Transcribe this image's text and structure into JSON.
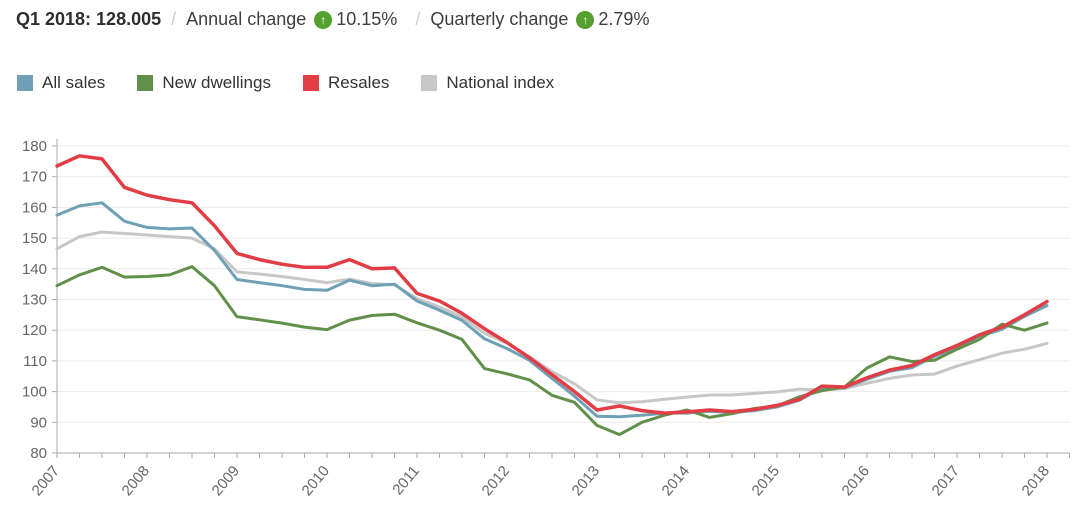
{
  "header": {
    "title": "Q1 2018: 128.005",
    "separator": "/",
    "annual_label": "Annual change",
    "annual_value": "10.15%",
    "quarterly_label": "Quarterly change",
    "quarterly_value": "2.79%"
  },
  "icons": {
    "up_arrow": "↑"
  },
  "colors": {
    "accent_green": "#55a12f",
    "grid": "#ebebeb",
    "axis_line": "#aaaaaa",
    "axis_text": "#666666"
  },
  "legend": {
    "items": [
      {
        "label": "All sales",
        "color": "#6fa0b5"
      },
      {
        "label": "New dwellings",
        "color": "#61904b"
      },
      {
        "label": "Resales",
        "color": "#e23d45"
      },
      {
        "label": "National index",
        "color": "#c7c7c7"
      }
    ]
  },
  "chart_data": {
    "type": "line",
    "title": "Q1 2018: 128.005",
    "xlabel": "",
    "ylabel": "",
    "ylim": [
      80,
      180
    ],
    "y_ticks": [
      180,
      170,
      160,
      150,
      140,
      130,
      120,
      110,
      100,
      90,
      80
    ],
    "x_years": [
      "2007",
      "2008",
      "2009",
      "2010",
      "2011",
      "2012",
      "2013",
      "2014",
      "2015",
      "2016",
      "2017",
      "2018"
    ],
    "points_per_year": 4,
    "legend_position": "top",
    "grid": true,
    "series": [
      {
        "name": "All sales",
        "color": "#6fa0b5",
        "values": [
          157.5,
          160.5,
          161.5,
          155.5,
          153.5,
          153,
          153.3,
          146,
          136.5,
          135.5,
          134.5,
          133.3,
          133,
          136.3,
          134.5,
          135,
          129.5,
          126.5,
          123.2,
          117.2,
          114,
          110.2,
          104.3,
          98.5,
          92,
          91.8,
          92.3,
          93,
          93,
          93.6,
          93.2,
          93.8,
          95,
          97.2,
          101.3,
          101.2,
          104,
          106.6,
          107.8,
          111.5,
          114.5,
          118,
          120.3,
          124.5,
          128
        ]
      },
      {
        "name": "New dwellings",
        "color": "#61904b",
        "values": [
          134.5,
          138,
          140.5,
          137.3,
          137.5,
          138,
          140.7,
          134.5,
          124.4,
          123.4,
          122.3,
          121,
          120.2,
          123.3,
          124.8,
          125.2,
          122.4,
          120,
          117,
          107.5,
          105.8,
          103.8,
          98.8,
          96.5,
          89,
          86,
          90,
          92.3,
          94,
          91.6,
          92.8,
          94.5,
          95.3,
          98.3,
          100.3,
          101.5,
          107.7,
          111.3,
          109.8,
          110.2,
          113.8,
          117,
          122,
          120,
          122.3
        ]
      },
      {
        "name": "Resales",
        "color": "#e23d45",
        "values": [
          173.5,
          176.8,
          175.8,
          166.5,
          164,
          162.5,
          161.5,
          154,
          145,
          143,
          141.5,
          140.5,
          140.5,
          143,
          140,
          140.3,
          132,
          129.5,
          125.5,
          120.5,
          116,
          111,
          105.5,
          100,
          94,
          95.3,
          93.8,
          93,
          93.4,
          94,
          93.5,
          94.2,
          95.5,
          97.5,
          101.8,
          101.5,
          104.5,
          107,
          108.5,
          112,
          115,
          118.5,
          121,
          125,
          129.3
        ]
      },
      {
        "name": "National index",
        "color": "#c7c7c7",
        "values": [
          146.5,
          150.5,
          152,
          151.5,
          151,
          150.5,
          150,
          146.5,
          139,
          138.3,
          137.5,
          136.5,
          135.5,
          136.6,
          135.2,
          134.8,
          130.3,
          127.6,
          124.3,
          119,
          115.8,
          111.4,
          106.5,
          102.5,
          97.3,
          96.4,
          96.7,
          97.5,
          98.2,
          98.9,
          98.9,
          99.4,
          99.9,
          100.8,
          100.5,
          101,
          102.7,
          104.3,
          105.4,
          105.7,
          108.3,
          110.4,
          112.5,
          113.8,
          115.7
        ]
      }
    ]
  }
}
